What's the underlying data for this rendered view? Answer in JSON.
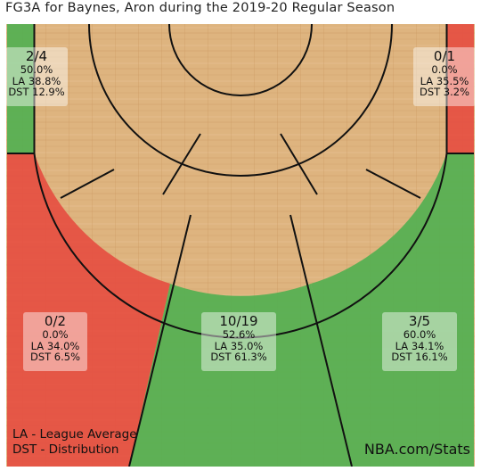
{
  "title": "FG3A for Baynes, Aron during the 2019-20 Regular Season",
  "colors": {
    "above": "#4caf50",
    "below": "#e64a3f",
    "court_line": "#111111",
    "wood_light": "#deb47f",
    "wood_dark": "#c99a62"
  },
  "chart_data": {
    "type": "shot-zone-map",
    "title": "FG3A for Baynes, Aron during the 2019-20 Regular Season",
    "zones": [
      {
        "id": "left-corner-3",
        "frac": "2/4",
        "pct": "50.0%",
        "la": "LA 38.8%",
        "dst": "DST 12.9%",
        "fg_pct": 50.0,
        "league_avg": 38.8,
        "distribution": 12.9,
        "status": "above"
      },
      {
        "id": "right-corner-3",
        "frac": "0/1",
        "pct": "0.0%",
        "la": "LA 35.5%",
        "dst": "DST 3.2%",
        "fg_pct": 0.0,
        "league_avg": 35.5,
        "distribution": 3.2,
        "status": "below"
      },
      {
        "id": "left-wing-3",
        "frac": "0/2",
        "pct": "0.0%",
        "la": "LA 34.0%",
        "dst": "DST 6.5%",
        "fg_pct": 0.0,
        "league_avg": 34.0,
        "distribution": 6.5,
        "status": "below"
      },
      {
        "id": "top-of-key-3",
        "frac": "10/19",
        "pct": "52.6%",
        "la": "LA 35.0%",
        "dst": "DST 61.3%",
        "fg_pct": 52.6,
        "league_avg": 35.0,
        "distribution": 61.3,
        "status": "above"
      },
      {
        "id": "right-wing-3",
        "frac": "3/5",
        "pct": "60.0%",
        "la": "LA 34.1%",
        "dst": "DST 16.1%",
        "fg_pct": 60.0,
        "league_avg": 34.1,
        "distribution": 16.1,
        "status": "above"
      }
    ]
  },
  "legend": {
    "la": "LA - League Average",
    "dst": "DST - Distribution"
  },
  "source": "NBA.com/Stats"
}
